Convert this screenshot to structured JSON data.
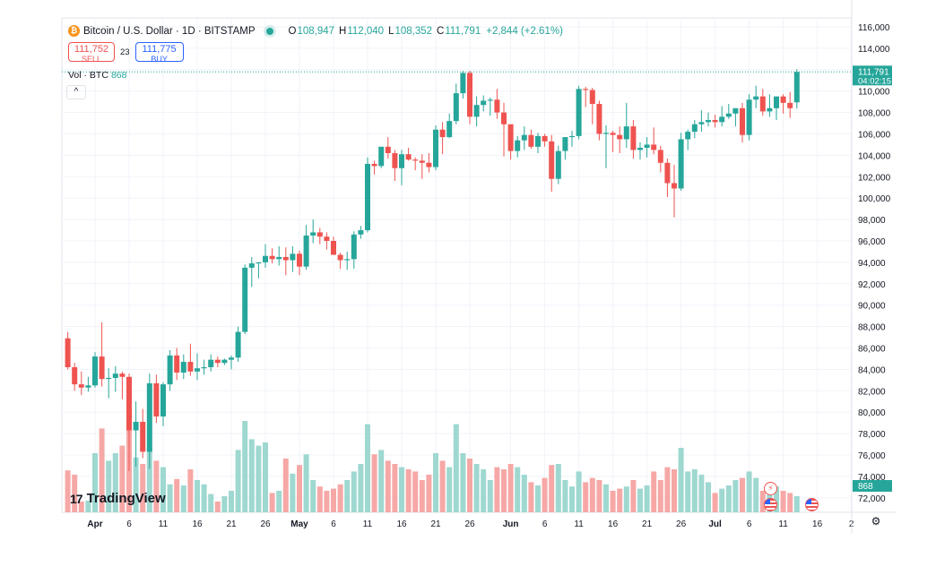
{
  "legend": {
    "coin_symbol": "₿",
    "title": "Bitcoin / U.S. Dollar · 1D · BITSTAMP",
    "o_label": "O",
    "o_value": "108,947",
    "h_label": "H",
    "h_value": "112,040",
    "l_label": "L",
    "l_value": "108,352",
    "c_label": "C",
    "c_value": "111,791",
    "change": "+2,844 (+2.61%)"
  },
  "trade": {
    "sell_price": "111,752",
    "sell_label": "SELL",
    "spread": "23",
    "buy_price": "111,775",
    "buy_label": "BUY"
  },
  "volume": {
    "label": "Vol · BTC",
    "value": "868"
  },
  "collapse_icon": "^",
  "branding": {
    "mark": "17",
    "name": "TradingView"
  },
  "colors": {
    "up": "#26a69a",
    "down": "#ef5350",
    "vol_up": "#9ed8d0",
    "vol_down": "#f6a8a6",
    "grid": "#f0f3fa"
  },
  "chart_data": {
    "type": "candlestick",
    "price_axis": {
      "ylim": [
        70500,
        117000
      ],
      "ticks": [
        "116,000",
        "114,000",
        "112,000",
        "110,000",
        "108,000",
        "106,000",
        "104,000",
        "102,000",
        "100,000",
        "98,000",
        "96,000",
        "94,000",
        "92,000",
        "90,000",
        "88,000",
        "86,000",
        "84,000",
        "82,000",
        "80,000",
        "78,000",
        "76,000",
        "74,000",
        "72,000"
      ],
      "last_price_label": "111,791",
      "countdown_label": "04:02:15",
      "last_volume_label": "868"
    },
    "time_axis": {
      "labels": [
        "Apr",
        "6",
        "11",
        "16",
        "21",
        "26",
        "May",
        "6",
        "11",
        "16",
        "21",
        "26",
        "Jun",
        "6",
        "11",
        "16",
        "21",
        "26",
        "Jul",
        "6",
        "11",
        "16",
        "2"
      ],
      "label_days": [
        0,
        5,
        10,
        15,
        20,
        25,
        30,
        35,
        40,
        45,
        50,
        55,
        61,
        66,
        71,
        76,
        81,
        86,
        91,
        96,
        101,
        106,
        111
      ]
    },
    "candles": [
      {
        "d": -4,
        "o": 86900,
        "h": 87500,
        "l": 84000,
        "c": 84200,
        "v": 39
      },
      {
        "d": -3,
        "o": 84200,
        "h": 84600,
        "l": 82000,
        "c": 82600,
        "v": 35
      },
      {
        "d": -2,
        "o": 82600,
        "h": 83800,
        "l": 81600,
        "c": 82300,
        "v": 10
      },
      {
        "d": -1,
        "o": 82300,
        "h": 83300,
        "l": 81900,
        "c": 82500,
        "v": 11
      },
      {
        "d": 0,
        "o": 82500,
        "h": 85600,
        "l": 82300,
        "c": 85200,
        "v": 55
      },
      {
        "d": 1,
        "o": 85200,
        "h": 88400,
        "l": 82400,
        "c": 83100,
        "v": 78
      },
      {
        "d": 2,
        "o": 83100,
        "h": 84100,
        "l": 81300,
        "c": 83200,
        "v": 48
      },
      {
        "d": 3,
        "o": 83200,
        "h": 84300,
        "l": 81900,
        "c": 83600,
        "v": 55
      },
      {
        "d": 4,
        "o": 83600,
        "h": 83800,
        "l": 81200,
        "c": 83300,
        "v": 62
      },
      {
        "d": 5,
        "o": 83300,
        "h": 83600,
        "l": 74500,
        "c": 78300,
        "v": 82
      },
      {
        "d": 6,
        "o": 78300,
        "h": 81000,
        "l": 74900,
        "c": 79100,
        "v": 51
      },
      {
        "d": 7,
        "o": 79100,
        "h": 80300,
        "l": 75700,
        "c": 76300,
        "v": 45
      },
      {
        "d": 8,
        "o": 76300,
        "h": 83600,
        "l": 74700,
        "c": 82700,
        "v": 60
      },
      {
        "d": 9,
        "o": 82700,
        "h": 83500,
        "l": 79000,
        "c": 79600,
        "v": 48
      },
      {
        "d": 10,
        "o": 79600,
        "h": 82800,
        "l": 78700,
        "c": 82600,
        "v": 42
      },
      {
        "d": 11,
        "o": 82600,
        "h": 85800,
        "l": 82000,
        "c": 85300,
        "v": 26
      },
      {
        "d": 12,
        "o": 85300,
        "h": 86000,
        "l": 83000,
        "c": 83700,
        "v": 31
      },
      {
        "d": 13,
        "o": 83700,
        "h": 85400,
        "l": 83100,
        "c": 84700,
        "v": 25
      },
      {
        "d": 14,
        "o": 84700,
        "h": 86400,
        "l": 83400,
        "c": 83800,
        "v": 40
      },
      {
        "d": 15,
        "o": 83800,
        "h": 85500,
        "l": 83000,
        "c": 84100,
        "v": 30
      },
      {
        "d": 16,
        "o": 84100,
        "h": 84900,
        "l": 83500,
        "c": 84200,
        "v": 26
      },
      {
        "d": 17,
        "o": 84200,
        "h": 85400,
        "l": 83800,
        "c": 84900,
        "v": 17
      },
      {
        "d": 18,
        "o": 84900,
        "h": 85200,
        "l": 84200,
        "c": 84600,
        "v": 10
      },
      {
        "d": 19,
        "o": 84600,
        "h": 85000,
        "l": 84400,
        "c": 84900,
        "v": 15
      },
      {
        "d": 20,
        "o": 84900,
        "h": 85300,
        "l": 84000,
        "c": 85100,
        "v": 20
      },
      {
        "d": 21,
        "o": 85100,
        "h": 88000,
        "l": 84700,
        "c": 87500,
        "v": 58
      },
      {
        "d": 22,
        "o": 87500,
        "h": 93800,
        "l": 87300,
        "c": 93500,
        "v": 85
      },
      {
        "d": 23,
        "o": 93500,
        "h": 94500,
        "l": 91700,
        "c": 93900,
        "v": 68
      },
      {
        "d": 24,
        "o": 93900,
        "h": 94000,
        "l": 92500,
        "c": 94000,
        "v": 62
      },
      {
        "d": 25,
        "o": 94000,
        "h": 95700,
        "l": 93500,
        "c": 94600,
        "v": 65
      },
      {
        "d": 26,
        "o": 94600,
        "h": 95300,
        "l": 93900,
        "c": 94300,
        "v": 18
      },
      {
        "d": 27,
        "o": 94300,
        "h": 95500,
        "l": 93700,
        "c": 94500,
        "v": 20
      },
      {
        "d": 28,
        "o": 94500,
        "h": 95400,
        "l": 92800,
        "c": 94200,
        "v": 50
      },
      {
        "d": 29,
        "o": 94200,
        "h": 95500,
        "l": 93100,
        "c": 94800,
        "v": 36
      },
      {
        "d": 30,
        "o": 94800,
        "h": 95100,
        "l": 92800,
        "c": 93600,
        "v": 44
      },
      {
        "d": 31,
        "o": 93600,
        "h": 97500,
        "l": 93300,
        "c": 96500,
        "v": 54
      },
      {
        "d": 32,
        "o": 96500,
        "h": 98000,
        "l": 95800,
        "c": 96800,
        "v": 30
      },
      {
        "d": 33,
        "o": 96800,
        "h": 97200,
        "l": 95700,
        "c": 96400,
        "v": 24
      },
      {
        "d": 34,
        "o": 96400,
        "h": 96800,
        "l": 95200,
        "c": 96000,
        "v": 20
      },
      {
        "d": 35,
        "o": 96000,
        "h": 96400,
        "l": 94800,
        "c": 94700,
        "v": 22
      },
      {
        "d": 36,
        "o": 94700,
        "h": 94900,
        "l": 93400,
        "c": 94200,
        "v": 26
      },
      {
        "d": 37,
        "o": 94200,
        "h": 95000,
        "l": 93300,
        "c": 94300,
        "v": 30
      },
      {
        "d": 38,
        "o": 94300,
        "h": 96900,
        "l": 93400,
        "c": 96600,
        "v": 38
      },
      {
        "d": 39,
        "o": 96600,
        "h": 97400,
        "l": 96200,
        "c": 97000,
        "v": 45
      },
      {
        "d": 40,
        "o": 97000,
        "h": 103800,
        "l": 96800,
        "c": 103200,
        "v": 82
      },
      {
        "d": 41,
        "o": 103200,
        "h": 103500,
        "l": 102200,
        "c": 103000,
        "v": 54
      },
      {
        "d": 42,
        "o": 103000,
        "h": 104800,
        "l": 102800,
        "c": 104800,
        "v": 58
      },
      {
        "d": 43,
        "o": 104800,
        "h": 105700,
        "l": 103700,
        "c": 104200,
        "v": 48
      },
      {
        "d": 44,
        "o": 104200,
        "h": 104500,
        "l": 101600,
        "c": 102800,
        "v": 45
      },
      {
        "d": 45,
        "o": 102800,
        "h": 104500,
        "l": 101200,
        "c": 104100,
        "v": 42
      },
      {
        "d": 46,
        "o": 104100,
        "h": 104700,
        "l": 103500,
        "c": 103600,
        "v": 40
      },
      {
        "d": 47,
        "o": 103600,
        "h": 103800,
        "l": 102600,
        "c": 103500,
        "v": 38
      },
      {
        "d": 48,
        "o": 103500,
        "h": 104100,
        "l": 101800,
        "c": 103300,
        "v": 30
      },
      {
        "d": 49,
        "o": 103300,
        "h": 104200,
        "l": 102400,
        "c": 102900,
        "v": 35
      },
      {
        "d": 50,
        "o": 102900,
        "h": 106800,
        "l": 102600,
        "c": 106400,
        "v": 55
      },
      {
        "d": 51,
        "o": 106400,
        "h": 107100,
        "l": 104100,
        "c": 105700,
        "v": 48
      },
      {
        "d": 52,
        "o": 105700,
        "h": 107900,
        "l": 105600,
        "c": 107200,
        "v": 42
      },
      {
        "d": 53,
        "o": 107200,
        "h": 110700,
        "l": 106900,
        "c": 109800,
        "v": 82
      },
      {
        "d": 54,
        "o": 109800,
        "h": 111900,
        "l": 109300,
        "c": 111700,
        "v": 55
      },
      {
        "d": 55,
        "o": 111700,
        "h": 111900,
        "l": 106900,
        "c": 107600,
        "v": 50
      },
      {
        "d": 56,
        "o": 107600,
        "h": 109500,
        "l": 106700,
        "c": 108700,
        "v": 45
      },
      {
        "d": 57,
        "o": 108700,
        "h": 109600,
        "l": 108100,
        "c": 109100,
        "v": 40
      },
      {
        "d": 58,
        "o": 109100,
        "h": 109400,
        "l": 107700,
        "c": 109200,
        "v": 30
      },
      {
        "d": 59,
        "o": 109200,
        "h": 110200,
        "l": 107400,
        "c": 108000,
        "v": 42
      },
      {
        "d": 60,
        "o": 108000,
        "h": 108900,
        "l": 103900,
        "c": 106900,
        "v": 40
      },
      {
        "d": 61,
        "o": 106900,
        "h": 106900,
        "l": 103600,
        "c": 104400,
        "v": 45
      },
      {
        "d": 62,
        "o": 104400,
        "h": 105800,
        "l": 103800,
        "c": 105400,
        "v": 42
      },
      {
        "d": 63,
        "o": 105400,
        "h": 106700,
        "l": 104500,
        "c": 105900,
        "v": 35
      },
      {
        "d": 64,
        "o": 105900,
        "h": 106400,
        "l": 104600,
        "c": 104800,
        "v": 28
      },
      {
        "d": 65,
        "o": 104800,
        "h": 106100,
        "l": 104200,
        "c": 105800,
        "v": 25
      },
      {
        "d": 66,
        "o": 105800,
        "h": 106000,
        "l": 104800,
        "c": 105300,
        "v": 32
      },
      {
        "d": 67,
        "o": 105300,
        "h": 105900,
        "l": 100600,
        "c": 101800,
        "v": 44
      },
      {
        "d": 68,
        "o": 101800,
        "h": 104900,
        "l": 101300,
        "c": 104400,
        "v": 45
      },
      {
        "d": 69,
        "o": 104400,
        "h": 105700,
        "l": 103600,
        "c": 105700,
        "v": 30
      },
      {
        "d": 70,
        "o": 105700,
        "h": 106300,
        "l": 104800,
        "c": 105800,
        "v": 24
      },
      {
        "d": 71,
        "o": 105800,
        "h": 110500,
        "l": 105500,
        "c": 110200,
        "v": 38
      },
      {
        "d": 72,
        "o": 110200,
        "h": 110400,
        "l": 108500,
        "c": 110100,
        "v": 28
      },
      {
        "d": 73,
        "o": 110100,
        "h": 110300,
        "l": 106900,
        "c": 108800,
        "v": 32
      },
      {
        "d": 74,
        "o": 108800,
        "h": 109100,
        "l": 105400,
        "c": 106000,
        "v": 30
      },
      {
        "d": 75,
        "o": 106000,
        "h": 106800,
        "l": 102800,
        "c": 106100,
        "v": 26
      },
      {
        "d": 76,
        "o": 106100,
        "h": 106300,
        "l": 104300,
        "c": 105900,
        "v": 20
      },
      {
        "d": 77,
        "o": 105900,
        "h": 106700,
        "l": 104200,
        "c": 105500,
        "v": 22
      },
      {
        "d": 78,
        "o": 105500,
        "h": 108900,
        "l": 104700,
        "c": 106700,
        "v": 24
      },
      {
        "d": 79,
        "o": 106700,
        "h": 107300,
        "l": 103700,
        "c": 104500,
        "v": 30
      },
      {
        "d": 80,
        "o": 104500,
        "h": 105200,
        "l": 103600,
        "c": 104700,
        "v": 22
      },
      {
        "d": 81,
        "o": 104700,
        "h": 105700,
        "l": 103800,
        "c": 105000,
        "v": 25
      },
      {
        "d": 82,
        "o": 105000,
        "h": 106600,
        "l": 104100,
        "c": 104500,
        "v": 38
      },
      {
        "d": 83,
        "o": 104500,
        "h": 104900,
        "l": 102400,
        "c": 103300,
        "v": 30
      },
      {
        "d": 84,
        "o": 103300,
        "h": 103700,
        "l": 100100,
        "c": 101400,
        "v": 42
      },
      {
        "d": 85,
        "o": 101400,
        "h": 103100,
        "l": 98200,
        "c": 100900,
        "v": 40
      },
      {
        "d": 86,
        "o": 100900,
        "h": 106100,
        "l": 100700,
        "c": 105500,
        "v": 60
      },
      {
        "d": 87,
        "o": 105500,
        "h": 106400,
        "l": 104500,
        "c": 106200,
        "v": 38
      },
      {
        "d": 88,
        "o": 106200,
        "h": 107300,
        "l": 105600,
        "c": 106900,
        "v": 40
      },
      {
        "d": 89,
        "o": 106900,
        "h": 108200,
        "l": 106200,
        "c": 107100,
        "v": 35
      },
      {
        "d": 90,
        "o": 107100,
        "h": 108000,
        "l": 106700,
        "c": 107300,
        "v": 28
      },
      {
        "d": 91,
        "o": 107300,
        "h": 107800,
        "l": 106600,
        "c": 107100,
        "v": 18
      },
      {
        "d": 92,
        "o": 107100,
        "h": 108600,
        "l": 106700,
        "c": 107600,
        "v": 22
      },
      {
        "d": 93,
        "o": 107600,
        "h": 108800,
        "l": 107400,
        "c": 107900,
        "v": 25
      },
      {
        "d": 94,
        "o": 107900,
        "h": 108400,
        "l": 106700,
        "c": 108400,
        "v": 30
      },
      {
        "d": 95,
        "o": 108400,
        "h": 108900,
        "l": 105200,
        "c": 105900,
        "v": 32
      },
      {
        "d": 96,
        "o": 105900,
        "h": 109700,
        "l": 105400,
        "c": 109200,
        "v": 38
      },
      {
        "d": 97,
        "o": 109200,
        "h": 110500,
        "l": 108400,
        "c": 109500,
        "v": 32
      },
      {
        "d": 98,
        "o": 109500,
        "h": 110200,
        "l": 107700,
        "c": 108100,
        "v": 20
      },
      {
        "d": 99,
        "o": 108100,
        "h": 109700,
        "l": 107600,
        "c": 108400,
        "v": 18
      },
      {
        "d": 100,
        "o": 108400,
        "h": 109400,
        "l": 107300,
        "c": 109500,
        "v": 24
      },
      {
        "d": 101,
        "o": 109500,
        "h": 109700,
        "l": 107900,
        "c": 108900,
        "v": 20
      },
      {
        "d": 102,
        "o": 108900,
        "h": 109900,
        "l": 107500,
        "c": 108400,
        "v": 18
      },
      {
        "d": 103,
        "o": 108947,
        "h": 112040,
        "l": 108352,
        "c": 111791,
        "v": 15
      }
    ]
  }
}
